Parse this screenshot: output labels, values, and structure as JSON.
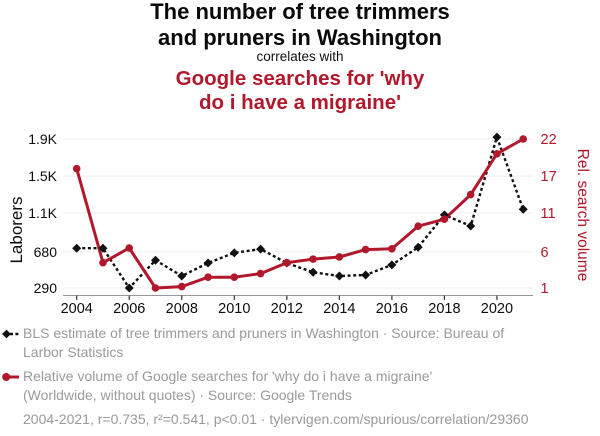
{
  "header": {
    "title_line1": "The number of tree trimmers",
    "title_line2": "and pruners in Washington",
    "connector": "correlates with",
    "subtitle_line1": "Google searches for 'why",
    "subtitle_line2": "do i have a migraine'"
  },
  "chart_data": {
    "type": "line",
    "x": [
      2004,
      2005,
      2006,
      2007,
      2008,
      2009,
      2010,
      2011,
      2012,
      2013,
      2014,
      2015,
      2016,
      2017,
      2018,
      2019,
      2020,
      2021
    ],
    "x_ticks": [
      2004,
      2006,
      2008,
      2010,
      2012,
      2014,
      2016,
      2018,
      2020
    ],
    "series": [
      {
        "name": "BLS estimate of tree trimmers and pruners in Washington",
        "axis": "left",
        "color": "#111111",
        "line_style": "dashed",
        "marker": "diamond",
        "values": [
          720,
          720,
          290,
          590,
          420,
          560,
          670,
          710,
          560,
          460,
          420,
          430,
          540,
          730,
          1080,
          960,
          1920,
          1140
        ]
      },
      {
        "name": "Relative volume of Google searches for 'why do i have a migraine'",
        "axis": "right",
        "color": "#b2182b",
        "line_style": "solid",
        "marker": "circle",
        "values": [
          18,
          4.5,
          6.5,
          1,
          1.2,
          2.5,
          2.5,
          3,
          4.5,
          5,
          5.3,
          6.3,
          6.4,
          9.3,
          10.2,
          14,
          20,
          22
        ]
      }
    ],
    "left_axis": {
      "label": "Laborers",
      "tick_values": [
        290,
        680,
        1100,
        1500,
        1900
      ],
      "tick_labels": [
        "290",
        "680",
        "1.1K",
        "1.5K",
        "1.9K"
      ],
      "range": [
        290,
        1920
      ]
    },
    "right_axis": {
      "label": "Rel. search volume",
      "tick_values": [
        1,
        6,
        11,
        17,
        22
      ],
      "tick_labels": [
        "1",
        "6",
        "11",
        "17",
        "22"
      ],
      "range": [
        1,
        22
      ]
    },
    "grid": true,
    "legend_position": "bottom"
  },
  "legend": {
    "entries": [
      {
        "series": "bls-laborers",
        "lines": [
          "BLS estimate of tree trimmers and pruners in Washington · Source: Bureau of",
          "Larbor Statistics"
        ]
      },
      {
        "series": "google-searches",
        "lines": [
          "Relative volume of Google searches for 'why do i have a migraine'",
          "(Worldwide, without quotes) · Source: Google Trends"
        ]
      }
    ],
    "footnote": "2004-2021, r=0.735, r²=0.541, p<0.01 · tylervigen.com/spurious/correlation/29360"
  },
  "colors": {
    "accent_red": "#b2182b",
    "series_black": "#111111",
    "legend_gray": "#9a9a9a",
    "grid": "#ececec",
    "axis_line": "#999999",
    "tick_mark": "#333333"
  }
}
